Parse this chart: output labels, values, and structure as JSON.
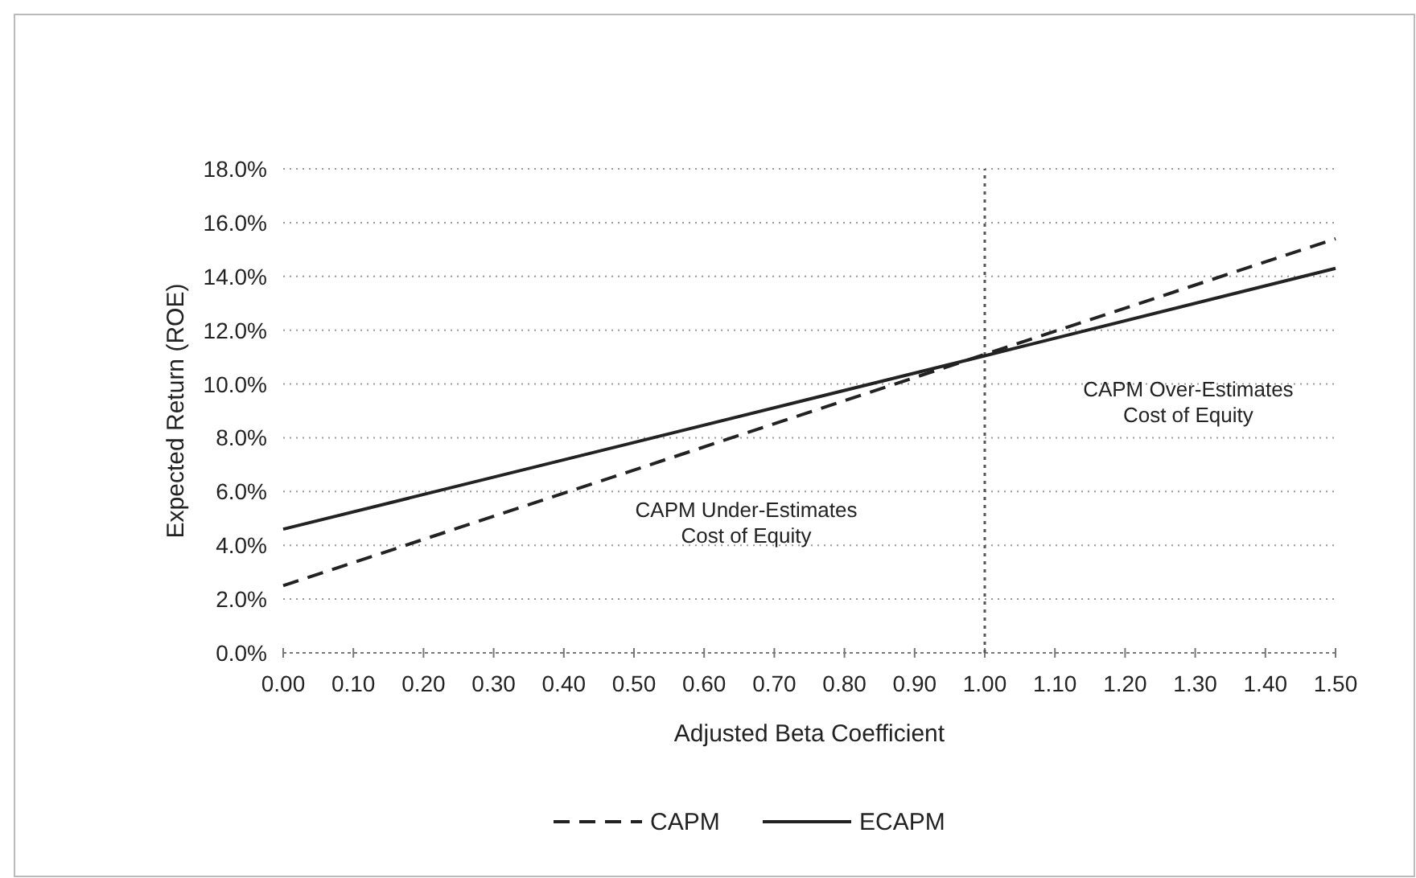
{
  "chart_data": {
    "type": "line",
    "xlabel": "Adjusted Beta Coefficient",
    "ylabel": "Expected Return (ROE)",
    "x": [
      0,
      1.0,
      1.5
    ],
    "xlim": [
      0,
      1.5
    ],
    "xticks": [
      {
        "value": 0,
        "label": "0.00"
      },
      {
        "value": 0.1,
        "label": "0.10"
      },
      {
        "value": 0.2,
        "label": "0.20"
      },
      {
        "value": 0.3,
        "label": "0.30"
      },
      {
        "value": 0.4,
        "label": "0.40"
      },
      {
        "value": 0.5,
        "label": "0.50"
      },
      {
        "value": 0.6,
        "label": "0.60"
      },
      {
        "value": 0.7,
        "label": "0.70"
      },
      {
        "value": 0.8,
        "label": "0.80"
      },
      {
        "value": 0.9,
        "label": "0.90"
      },
      {
        "value": 1.0,
        "label": "1.00"
      },
      {
        "value": 1.1,
        "label": "1.10"
      },
      {
        "value": 1.2,
        "label": "1.20"
      },
      {
        "value": 1.3,
        "label": "1.30"
      },
      {
        "value": 1.4,
        "label": "1.40"
      },
      {
        "value": 1.5,
        "label": "1.50"
      }
    ],
    "ylim": [
      0,
      18
    ],
    "yticks": [
      {
        "value": 0,
        "label": "0.0%"
      },
      {
        "value": 2,
        "label": "2.0%"
      },
      {
        "value": 4,
        "label": "4.0%"
      },
      {
        "value": 6,
        "label": "6.0%"
      },
      {
        "value": 8,
        "label": "8.0%"
      },
      {
        "value": 10,
        "label": "10.0%"
      },
      {
        "value": 12,
        "label": "12.0%"
      },
      {
        "value": 14,
        "label": "14.0%"
      },
      {
        "value": 16,
        "label": "16.0%"
      },
      {
        "value": 18,
        "label": "18.0%"
      }
    ],
    "grid": "y",
    "legend": "bottom",
    "marker": "none",
    "series": [
      {
        "name": "CAPM",
        "color": "#222222",
        "line_style": "dashed",
        "values": [
          2.5,
          11.1,
          15.4
        ]
      },
      {
        "name": "ECAPM",
        "color": "#222222",
        "line_style": "solid",
        "values": [
          4.6,
          11.05,
          14.3
        ]
      }
    ],
    "ref_lines": [
      {
        "axis": "x",
        "value": 1.0,
        "color": "#555555",
        "line_style": "dotted"
      }
    ],
    "annotations": [
      "CAPM Under-Estimates\nCost of Equity",
      "CAPM Over-Estimates\nCost of Equity"
    ]
  }
}
